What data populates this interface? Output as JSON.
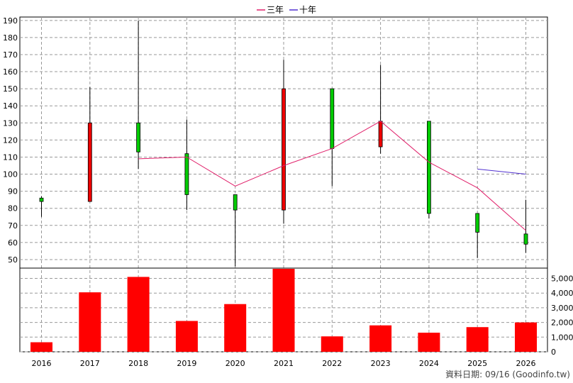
{
  "chart_data": {
    "type": "candlestick",
    "legend": [
      {
        "name": "三年",
        "color": "#e0206a"
      },
      {
        "name": "十年",
        "color": "#5030d0"
      }
    ],
    "categories": [
      "2016",
      "2017",
      "2018",
      "2019",
      "2020",
      "2021",
      "2022",
      "2023",
      "2024",
      "2025",
      "2026"
    ],
    "price": {
      "ylim": [
        45,
        192
      ],
      "ticks": [
        190,
        180,
        170,
        160,
        150,
        140,
        130,
        120,
        110,
        100,
        90,
        80,
        70,
        60,
        50
      ],
      "candles": [
        {
          "year": "2016",
          "open": 84,
          "close": 86,
          "high": 87,
          "low": 75,
          "color": "#00cc00"
        },
        {
          "year": "2017",
          "open": 84,
          "close": 130,
          "high": 151,
          "low": 84,
          "color": "#ee0000"
        },
        {
          "year": "2018",
          "open": 130,
          "close": 113,
          "high": 190,
          "low": 103,
          "color": "#00cc00"
        },
        {
          "year": "2019",
          "open": 112,
          "close": 88,
          "high": 132,
          "low": 79,
          "color": "#00cc00"
        },
        {
          "year": "2020",
          "open": 88,
          "close": 79,
          "high": 88,
          "low": 46,
          "color": "#00cc00"
        },
        {
          "year": "2021",
          "open": 79,
          "close": 150,
          "high": 167,
          "low": 71,
          "color": "#ee0000"
        },
        {
          "year": "2022",
          "open": 150,
          "close": 115,
          "high": 150,
          "low": 93,
          "color": "#00cc00"
        },
        {
          "year": "2023",
          "open": 116,
          "close": 131,
          "high": 164,
          "low": 112,
          "color": "#ee0000"
        },
        {
          "year": "2024",
          "open": 131,
          "close": 77,
          "high": 131,
          "low": 74,
          "color": "#00cc00"
        },
        {
          "year": "2025",
          "open": 77,
          "close": 66,
          "high": 77,
          "low": 51,
          "color": "#00cc00"
        },
        {
          "year": "2026",
          "open": 65,
          "close": 59,
          "high": 85,
          "low": 54,
          "color": "#00cc00"
        }
      ],
      "series": [
        {
          "name": "三年",
          "color": "#e0206a",
          "values": [
            null,
            null,
            109,
            110,
            93,
            105,
            115,
            131,
            107,
            92,
            67
          ]
        },
        {
          "name": "十年",
          "color": "#5030d0",
          "values": [
            null,
            null,
            null,
            null,
            null,
            null,
            null,
            null,
            null,
            103,
            100
          ]
        }
      ]
    },
    "volume": {
      "ylim": [
        0,
        5700
      ],
      "ticks": [
        0,
        1000,
        2000,
        3000,
        4000,
        5000
      ],
      "tick_labels": [
        "0",
        "1,000",
        "2,000",
        "3,000",
        "4,000",
        "5,000"
      ],
      "values": [
        650,
        4050,
        5100,
        2100,
        3250,
        5650,
        1050,
        1800,
        1300,
        1680,
        2000
      ],
      "color": "#ff0000"
    }
  },
  "footer": "資料日期: 09/16  (Goodinfo.tw)"
}
